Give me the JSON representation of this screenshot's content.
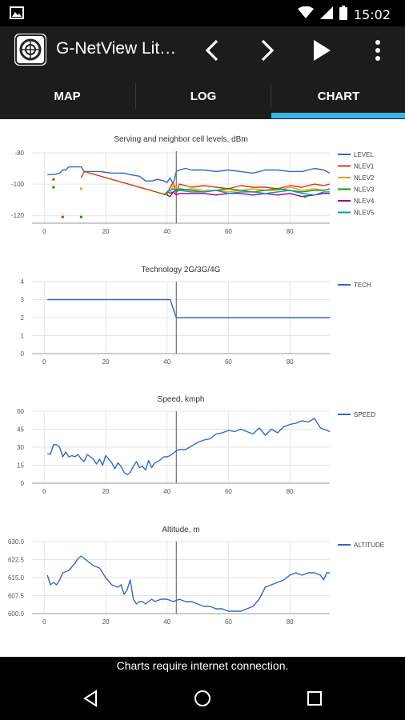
{
  "status_bar": {
    "time": "15:02",
    "icons": [
      "gallery-icon",
      "wifi-icon",
      "signal-icon",
      "battery-icon"
    ]
  },
  "app_bar": {
    "title": "G-NetView Lit…",
    "icons": [
      "app-logo-icon",
      "chevron-left-icon",
      "chevron-right-icon",
      "play-icon",
      "overflow-menu-icon"
    ]
  },
  "tabs": [
    {
      "label": "MAP"
    },
    {
      "label": "LOG"
    },
    {
      "label": "CHART",
      "selected": true
    }
  ],
  "colors": {
    "accent": "#33b5e5",
    "bar": "#1c1c1c",
    "line": "#3366cc"
  },
  "chart_data": [
    {
      "type": "line",
      "title": "Serving and neighbor cell levels, dBm",
      "x_ticks": [
        0,
        20,
        40,
        60,
        80
      ],
      "y_ticks": [
        -80,
        -100,
        -120
      ],
      "xlim": [
        -4,
        93
      ],
      "ylim": [
        -125,
        -79
      ],
      "cursor_x": 43,
      "legend_position": "right",
      "series": [
        {
          "name": "LEVEL",
          "color": "#3366cc",
          "x": [
            1,
            3,
            5,
            6,
            7,
            8,
            10,
            12,
            13,
            15,
            18,
            22,
            26,
            28,
            31,
            33,
            35,
            37,
            39,
            40,
            41,
            42,
            43,
            44,
            46,
            48,
            52,
            56,
            60,
            64,
            68,
            72,
            76,
            80,
            84,
            88,
            91,
            93
          ],
          "y": [
            -94,
            -94,
            -93,
            -91,
            -91,
            -89,
            -89,
            -89,
            -92,
            -92,
            -92,
            -93,
            -93,
            -94,
            -95,
            -98,
            -98,
            -97,
            -98,
            -99,
            -96,
            -100,
            -92,
            -91,
            -90,
            -91,
            -91,
            -92,
            -91,
            -92,
            -93,
            -91,
            -91,
            -92,
            -92,
            -90,
            -91,
            -93
          ]
        },
        {
          "name": "NLEV1",
          "color": "#dc3912",
          "x": [
            12,
            13,
            40,
            41,
            42,
            43,
            44,
            48,
            52,
            56,
            60,
            64,
            68,
            72,
            76,
            80,
            84,
            88,
            91,
            93
          ],
          "y": [
            -96,
            -92,
            -107,
            -102,
            -99,
            -106,
            -100,
            -102,
            -101,
            -102,
            -103,
            -101,
            -102,
            -102,
            -103,
            -101,
            -102,
            -100,
            -101,
            -100
          ]
        },
        {
          "name": "NLEV2",
          "color": "#ff9900",
          "x": [
            40,
            41,
            42,
            43,
            44,
            48,
            52,
            56,
            60,
            64,
            68,
            72,
            76,
            80,
            84,
            88,
            91,
            93
          ],
          "y": [
            -104,
            -106,
            -100,
            -102,
            -104,
            -103,
            -104,
            -104,
            -105,
            -104,
            -103,
            -104,
            -104,
            -102,
            -104,
            -103,
            -104,
            -103
          ]
        },
        {
          "name": "NLEV3",
          "color": "#109618",
          "x": [
            39,
            40,
            41,
            42,
            43,
            44,
            48,
            52,
            56,
            60,
            64,
            68,
            72,
            76,
            80,
            84,
            88,
            91,
            93
          ],
          "y": [
            -107,
            -105,
            -106,
            -105,
            -104,
            -103,
            -104,
            -105,
            -104,
            -103,
            -104,
            -105,
            -104,
            -103,
            -104,
            -105,
            -104,
            -104,
            -103
          ]
        },
        {
          "name": "NLEV4",
          "color": "#990099",
          "x": [
            40,
            41,
            42,
            43,
            44,
            48,
            52,
            56,
            60,
            64,
            68,
            72,
            76,
            80,
            84,
            88,
            91,
            93
          ],
          "y": [
            -107,
            -108,
            -105,
            -107,
            -106,
            -106,
            -106,
            -107,
            -106,
            -106,
            -107,
            -106,
            -107,
            -106,
            -108,
            -107,
            -106,
            -106
          ]
        },
        {
          "name": "NLEV5",
          "color": "#0099c6",
          "x": [
            40,
            41,
            42,
            43,
            44,
            48,
            52,
            56,
            60,
            64,
            68,
            72,
            76,
            80,
            84,
            88,
            91,
            93
          ],
          "y": [
            -105,
            -104,
            -103,
            -105,
            -104,
            -105,
            -105,
            -104,
            -106,
            -105,
            -105,
            -106,
            -105,
            -104,
            -106,
            -107,
            -105,
            -105
          ]
        }
      ],
      "dots": [
        {
          "x": 3,
          "y": -97,
          "color": "#dc3912"
        },
        {
          "x": 3,
          "y": -102,
          "color": "#109618"
        },
        {
          "x": 6,
          "y": -121,
          "color": "#dc3912"
        },
        {
          "x": 12,
          "y": -103,
          "color": "#ff9900"
        },
        {
          "x": 12,
          "y": -121,
          "color": "#109618"
        },
        {
          "x": 85,
          "y": -108,
          "color": "#109618"
        }
      ]
    },
    {
      "type": "line",
      "title": "Technology 2G/3G/4G",
      "x_ticks": [
        0,
        20,
        40,
        60,
        80
      ],
      "y_ticks": [
        4,
        3,
        2,
        1,
        0
      ],
      "xlim": [
        -4,
        93
      ],
      "ylim": [
        0,
        4
      ],
      "cursor_x": 43,
      "legend_position": "right",
      "series": [
        {
          "name": "TECH",
          "color": "#3366cc",
          "x": [
            1,
            41,
            42,
            43,
            93
          ],
          "y": [
            3,
            3,
            2.5,
            2,
            2
          ]
        }
      ]
    },
    {
      "type": "line",
      "title": "Speed, kmph",
      "x_ticks": [
        0,
        20,
        40,
        60,
        80
      ],
      "y_ticks": [
        60,
        45,
        30,
        15,
        0
      ],
      "xlim": [
        -4,
        93
      ],
      "ylim": [
        0,
        60
      ],
      "cursor_x": 43,
      "legend_position": "right",
      "series": [
        {
          "name": "SPEED",
          "color": "#3366cc",
          "x": [
            1,
            2,
            3,
            4,
            5,
            6,
            7,
            8,
            9,
            10,
            11,
            12,
            13,
            14,
            15,
            16,
            17,
            18,
            19,
            20,
            21,
            22,
            23,
            24,
            25,
            26,
            27,
            28,
            29,
            30,
            31,
            32,
            33,
            34,
            35,
            36,
            37,
            38,
            39,
            40,
            41,
            42,
            43,
            44,
            46,
            48,
            50,
            52,
            54,
            56,
            58,
            60,
            62,
            64,
            66,
            68,
            70,
            72,
            74,
            76,
            78,
            80,
            82,
            84,
            86,
            88,
            90,
            92,
            93
          ],
          "y": [
            25,
            24,
            32,
            32,
            30,
            22,
            26,
            22,
            23,
            22,
            24,
            20,
            18,
            24,
            22,
            20,
            16,
            20,
            15,
            23,
            20,
            17,
            12,
            17,
            14,
            9,
            7,
            9,
            14,
            18,
            13,
            14,
            11,
            19,
            13,
            17,
            18,
            20,
            22,
            22,
            23,
            25,
            27,
            28,
            28,
            31,
            34,
            36,
            37,
            41,
            42,
            44,
            43,
            45,
            43,
            41,
            46,
            40,
            45,
            42,
            47,
            49,
            50,
            52,
            51,
            54,
            46,
            44,
            43
          ]
        }
      ]
    },
    {
      "type": "line",
      "title": "Altitude, m",
      "x_ticks": [
        0,
        20,
        40,
        60,
        80
      ],
      "y_ticks": [
        630.0,
        622.5,
        615.0,
        607.5,
        600.0
      ],
      "xlim": [
        -4,
        93
      ],
      "ylim": [
        600,
        630
      ],
      "cursor_x": 43,
      "legend_position": "right",
      "series": [
        {
          "name": "ALTITUDE",
          "color": "#3366cc",
          "x": [
            1,
            2,
            3,
            4,
            5,
            6,
            8,
            10,
            11,
            12,
            13,
            14,
            16,
            18,
            20,
            22,
            24,
            25,
            26,
            27,
            28,
            29,
            30,
            31,
            32,
            33,
            34,
            35,
            36,
            38,
            40,
            42,
            44,
            46,
            48,
            50,
            52,
            54,
            56,
            58,
            60,
            62,
            64,
            66,
            68,
            70,
            72,
            74,
            76,
            78,
            80,
            82,
            84,
            86,
            88,
            90,
            91,
            92,
            93
          ],
          "y": [
            616,
            612,
            613,
            612,
            614,
            617,
            618,
            621,
            623,
            624,
            623,
            622,
            620,
            619,
            615,
            612,
            611,
            612,
            608,
            610,
            614,
            606,
            604,
            605,
            605,
            604,
            605,
            606,
            605,
            606,
            606,
            605,
            606,
            605,
            605,
            604,
            603,
            603,
            602,
            602,
            601,
            601,
            601,
            602,
            603,
            606,
            611,
            612,
            613,
            614,
            616,
            617,
            616,
            617,
            617,
            616,
            614,
            617,
            617
          ]
        }
      ]
    }
  ],
  "toast": {
    "message": "Charts require internet connection."
  },
  "nav_bar": {
    "icons": [
      "back-icon",
      "home-icon",
      "recents-icon"
    ]
  }
}
